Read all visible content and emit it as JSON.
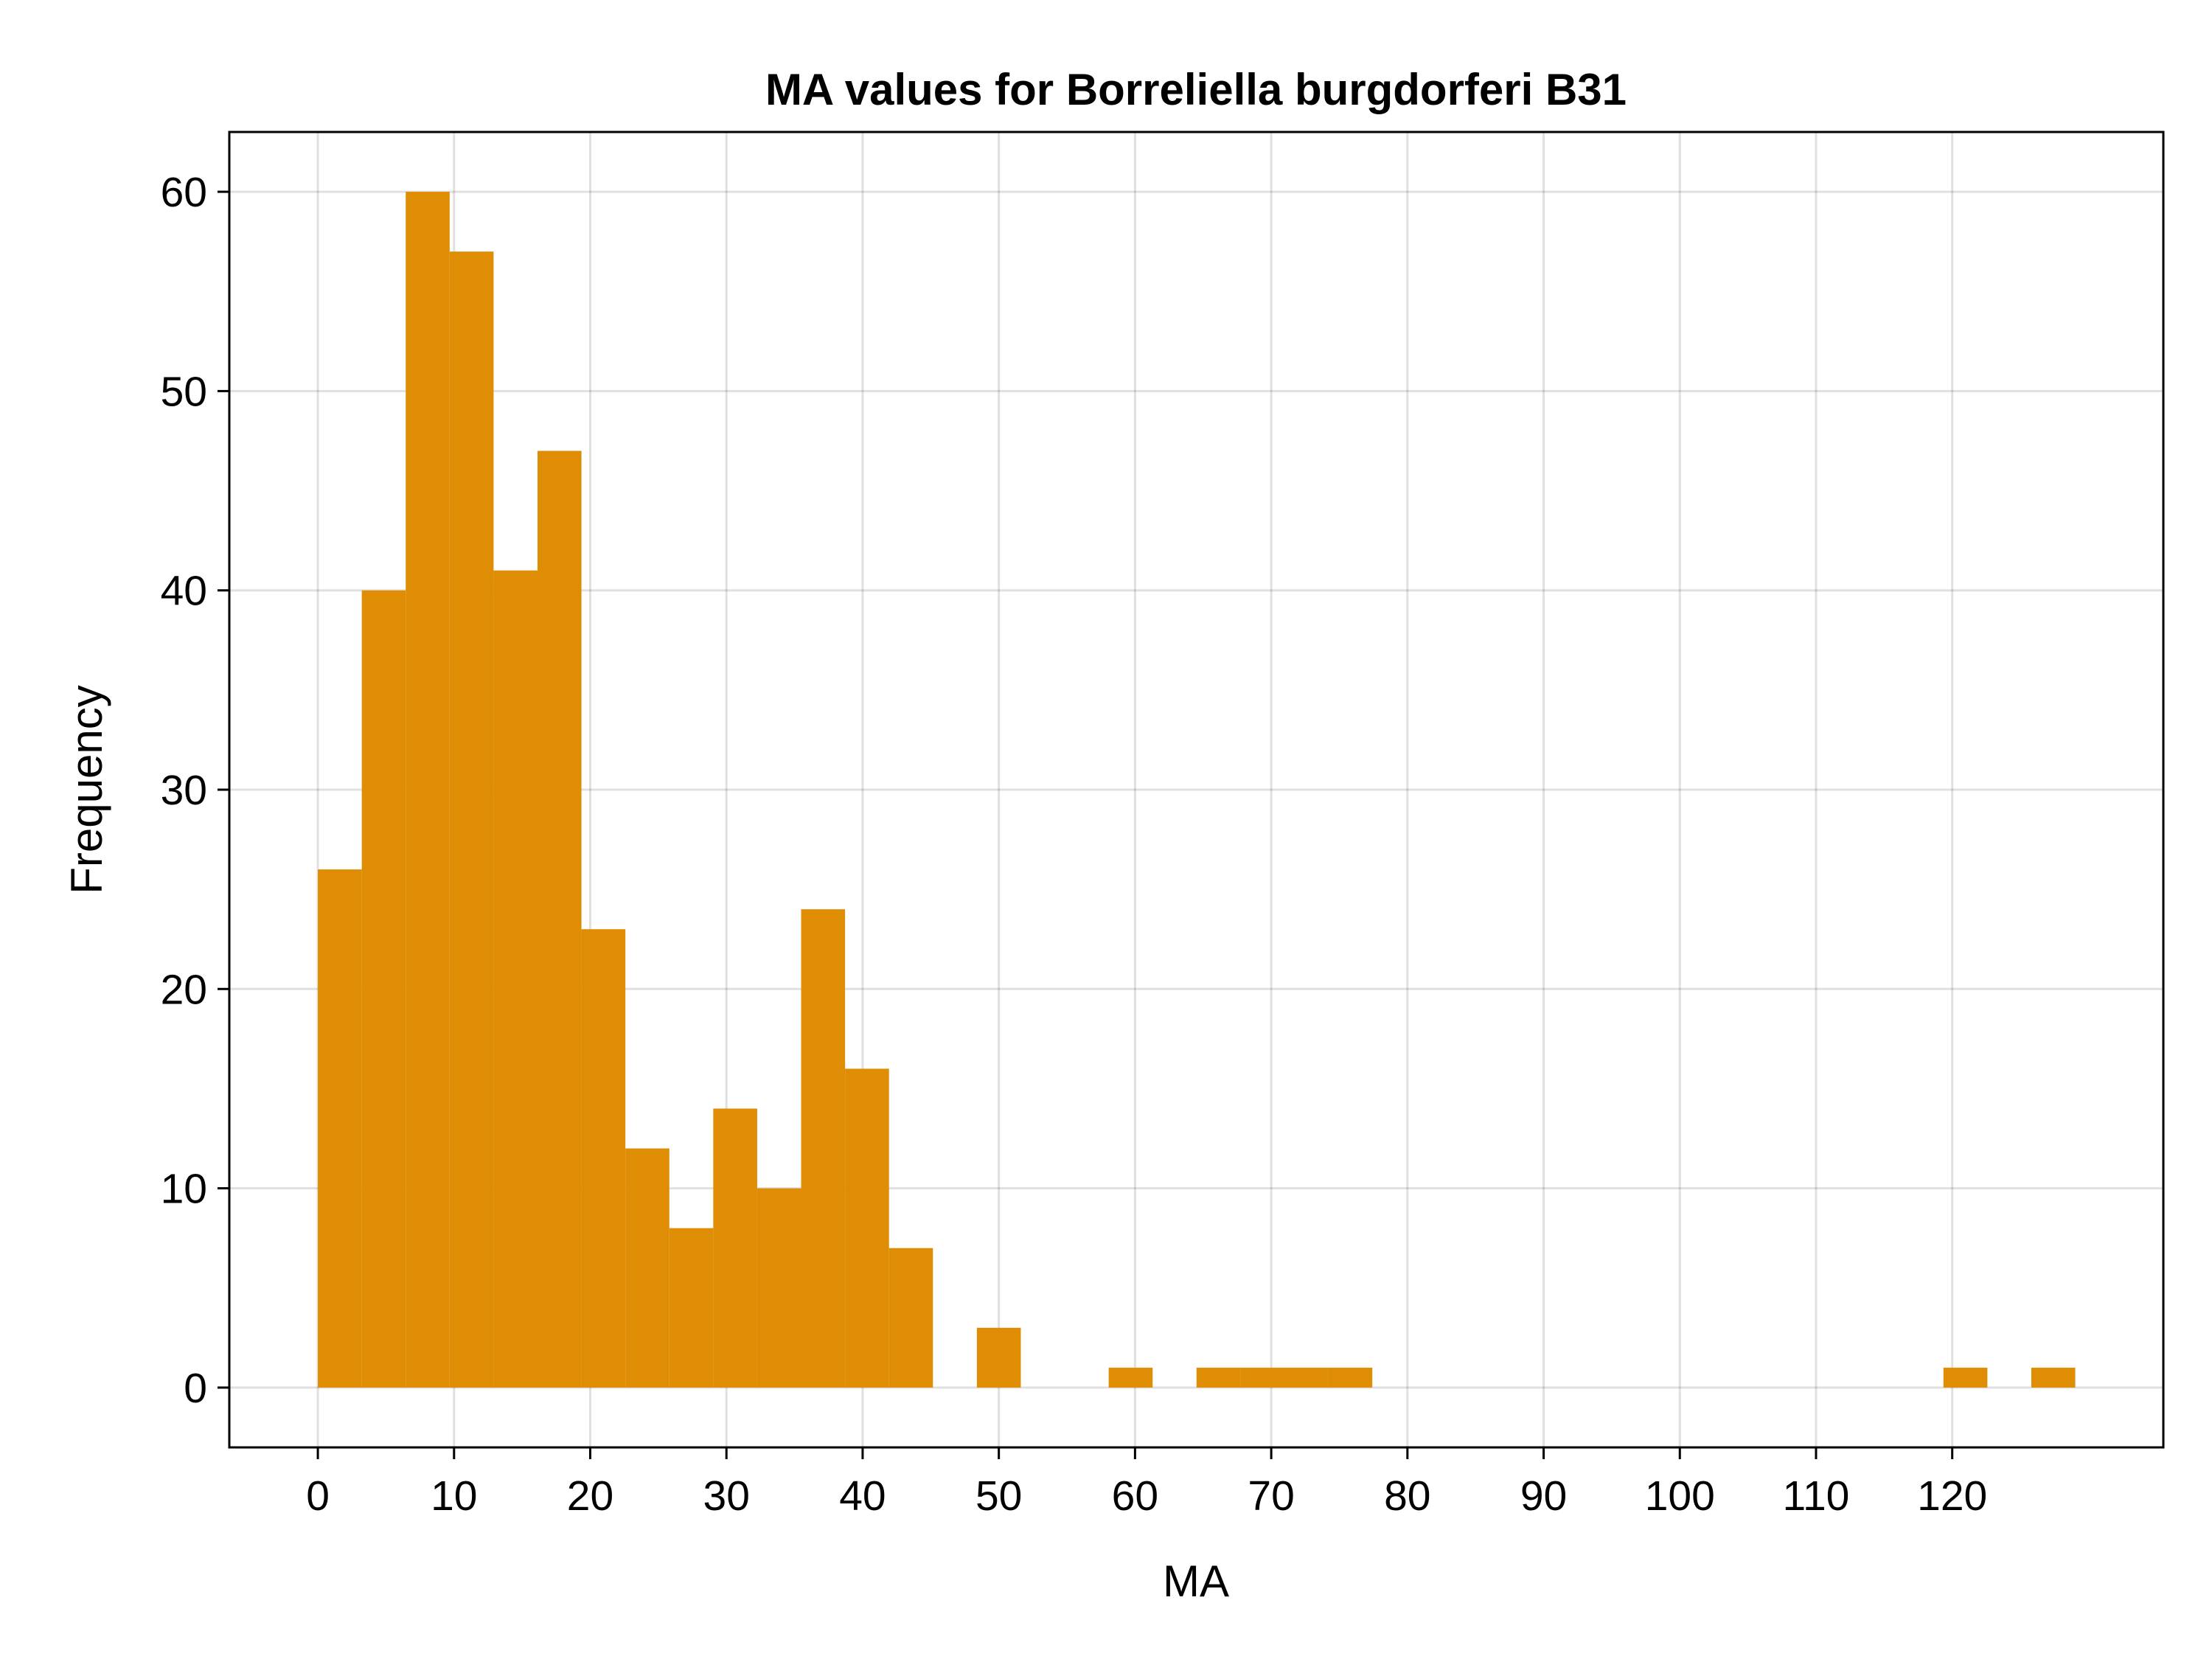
{
  "chart_data": {
    "type": "bar",
    "title": "MA values for Borreliella burgdorferi B31",
    "xlabel": "MA",
    "ylabel": "Frequency",
    "xlim": [
      -6.5,
      135.5
    ],
    "ylim": [
      -3,
      63
    ],
    "xticks": [
      0,
      10,
      20,
      30,
      40,
      50,
      60,
      70,
      80,
      90,
      100,
      110,
      120
    ],
    "yticks": [
      0,
      10,
      20,
      30,
      40,
      50,
      60
    ],
    "grid": true,
    "bar_color": "#DF8D05",
    "bin_width": 3.226,
    "bins": [
      {
        "start": 0.0,
        "value": 26
      },
      {
        "start": 3.226,
        "value": 40
      },
      {
        "start": 6.452,
        "value": 60
      },
      {
        "start": 9.677,
        "value": 57
      },
      {
        "start": 12.903,
        "value": 41
      },
      {
        "start": 16.129,
        "value": 47
      },
      {
        "start": 19.355,
        "value": 23
      },
      {
        "start": 22.581,
        "value": 12
      },
      {
        "start": 25.806,
        "value": 8
      },
      {
        "start": 29.032,
        "value": 14
      },
      {
        "start": 32.258,
        "value": 10
      },
      {
        "start": 35.484,
        "value": 24
      },
      {
        "start": 38.71,
        "value": 16
      },
      {
        "start": 41.935,
        "value": 7
      },
      {
        "start": 45.161,
        "value": 0
      },
      {
        "start": 48.387,
        "value": 3
      },
      {
        "start": 51.613,
        "value": 0
      },
      {
        "start": 54.839,
        "value": 0
      },
      {
        "start": 58.065,
        "value": 1
      },
      {
        "start": 61.29,
        "value": 0
      },
      {
        "start": 64.516,
        "value": 1
      },
      {
        "start": 67.742,
        "value": 1
      },
      {
        "start": 70.968,
        "value": 1
      },
      {
        "start": 74.194,
        "value": 1
      },
      {
        "start": 77.419,
        "value": 0
      },
      {
        "start": 119.355,
        "value": 1
      },
      {
        "start": 125.806,
        "value": 1
      }
    ]
  }
}
